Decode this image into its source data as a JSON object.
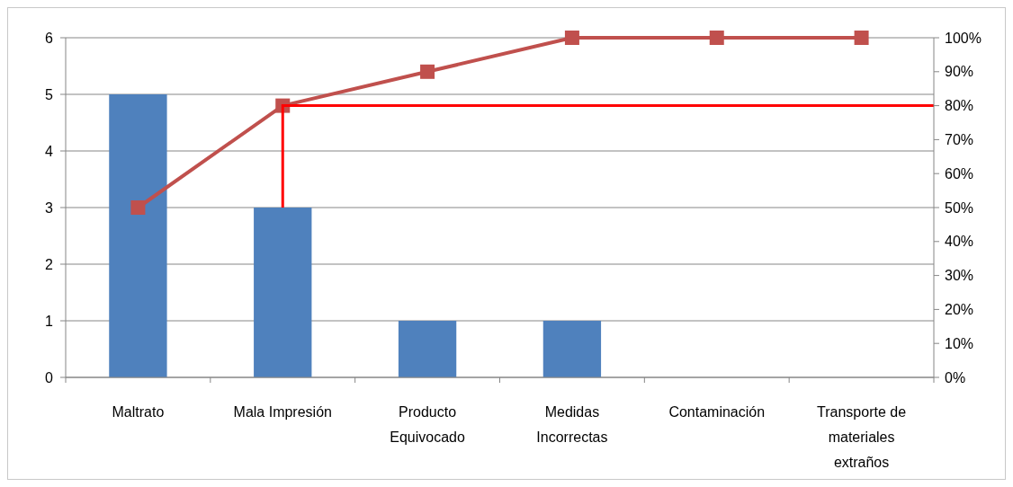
{
  "chart_data": {
    "type": "bar",
    "categories": [
      "Maltrato",
      "Mala Impresión",
      "Producto Equivocado",
      "Medidas Incorrectas",
      "Contaminación",
      "Transporte de materiales extraños"
    ],
    "series": [
      {
        "color": "#4f81bd",
        "values": [
          5,
          3,
          1,
          1,
          0,
          0
        ]
      },
      {
        "type": "line",
        "axis": "y2",
        "color": "#c0504d",
        "marker": "square",
        "values": [
          50,
          80,
          90,
          100,
          100,
          100
        ]
      }
    ],
    "ylim": [
      0,
      6
    ],
    "yticks": [
      0,
      1,
      2,
      3,
      4,
      5,
      6
    ],
    "y2lim": [
      0,
      100
    ],
    "y2ticks": [
      {
        "value": 0,
        "label": "0%"
      },
      {
        "value": 10,
        "label": "10%"
      },
      {
        "value": 20,
        "label": "20%"
      },
      {
        "value": 30,
        "label": "30%"
      },
      {
        "value": 40,
        "label": "40%"
      },
      {
        "value": 50,
        "label": "50%"
      },
      {
        "value": 60,
        "label": "60%"
      },
      {
        "value": 70,
        "label": "70%"
      },
      {
        "value": 80,
        "label": "80%"
      },
      {
        "value": 90,
        "label": "90%"
      },
      {
        "value": 100,
        "label": "100%"
      }
    ],
    "ref_lines": [
      {
        "axis": "y2",
        "value": 80,
        "color": "#ff0000"
      }
    ],
    "grid": "y"
  }
}
